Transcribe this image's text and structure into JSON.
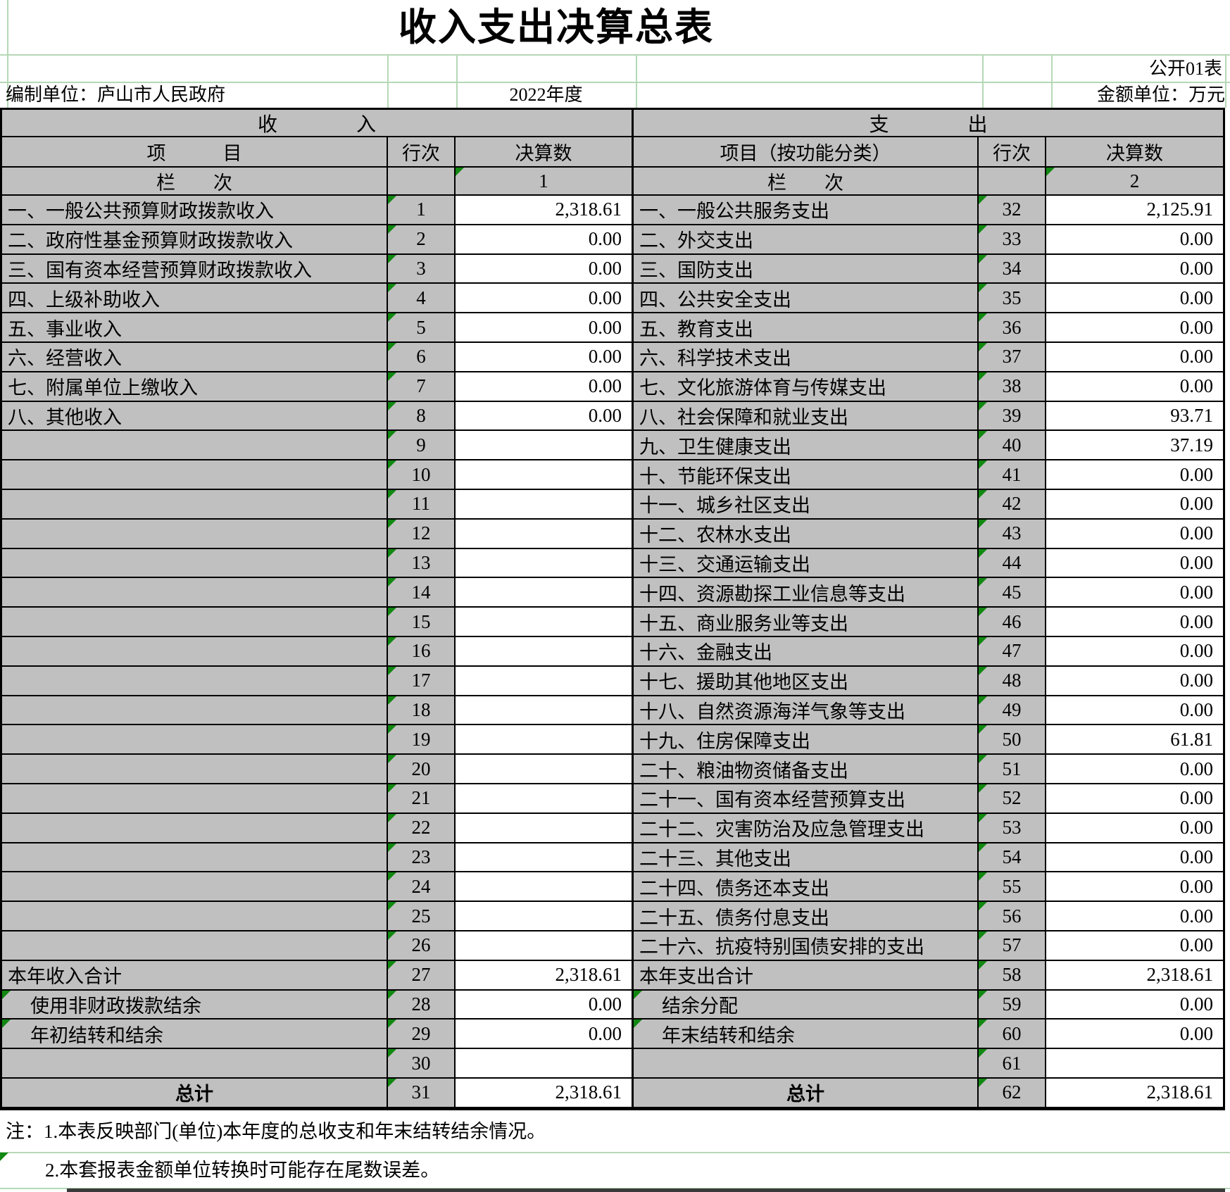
{
  "title": "收入支出决算总表",
  "meta": {
    "table_code": "公开01表",
    "prepared_by": "编制单位：庐山市人民政府",
    "fiscal_year": "2022年度",
    "unit_label": "金额单位：万元"
  },
  "income": {
    "section_title": "收　　　　入",
    "col_item": "项　　　目",
    "col_rowno": "行次",
    "col_amount": "决算数",
    "lanci_label": "栏　　次",
    "lanci_colno": "1",
    "rows": [
      {
        "item": "一、一般公共预算财政拨款收入",
        "no": "1",
        "value": "2,318.61"
      },
      {
        "item": "二、政府性基金预算财政拨款收入",
        "no": "2",
        "value": "0.00"
      },
      {
        "item": "三、国有资本经营预算财政拨款收入",
        "no": "3",
        "value": "0.00"
      },
      {
        "item": "四、上级补助收入",
        "no": "4",
        "value": "0.00"
      },
      {
        "item": "五、事业收入",
        "no": "5",
        "value": "0.00"
      },
      {
        "item": "六、经营收入",
        "no": "6",
        "value": "0.00"
      },
      {
        "item": "七、附属单位上缴收入",
        "no": "7",
        "value": "0.00"
      },
      {
        "item": "八、其他收入",
        "no": "8",
        "value": "0.00"
      },
      {
        "item": "",
        "no": "9",
        "value": ""
      },
      {
        "item": "",
        "no": "10",
        "value": ""
      },
      {
        "item": "",
        "no": "11",
        "value": ""
      },
      {
        "item": "",
        "no": "12",
        "value": ""
      },
      {
        "item": "",
        "no": "13",
        "value": ""
      },
      {
        "item": "",
        "no": "14",
        "value": ""
      },
      {
        "item": "",
        "no": "15",
        "value": ""
      },
      {
        "item": "",
        "no": "16",
        "value": ""
      },
      {
        "item": "",
        "no": "17",
        "value": ""
      },
      {
        "item": "",
        "no": "18",
        "value": ""
      },
      {
        "item": "",
        "no": "19",
        "value": ""
      },
      {
        "item": "",
        "no": "20",
        "value": ""
      },
      {
        "item": "",
        "no": "21",
        "value": ""
      },
      {
        "item": "",
        "no": "22",
        "value": ""
      },
      {
        "item": "",
        "no": "23",
        "value": ""
      },
      {
        "item": "",
        "no": "24",
        "value": ""
      },
      {
        "item": "",
        "no": "25",
        "value": ""
      },
      {
        "item": "",
        "no": "26",
        "value": ""
      },
      {
        "item": "本年收入合计",
        "no": "27",
        "value": "2,318.61"
      },
      {
        "item": "使用非财政拨款结余",
        "no": "28",
        "value": "0.00",
        "ind": 1,
        "tri": 1
      },
      {
        "item": "年初结转和结余",
        "no": "29",
        "value": "0.00",
        "ind": 1,
        "tri": 1
      },
      {
        "item": "",
        "no": "30",
        "value": ""
      },
      {
        "item": "总计",
        "no": "31",
        "value": "2,318.61",
        "tot": 1
      }
    ]
  },
  "expenditure": {
    "section_title": "支　　　　出",
    "col_item": "项目（按功能分类）",
    "col_rowno": "行次",
    "col_amount": "决算数",
    "lanci_label": "栏　　次",
    "lanci_colno": "2",
    "rows": [
      {
        "item": "一、一般公共服务支出",
        "no": "32",
        "value": "2,125.91"
      },
      {
        "item": "二、外交支出",
        "no": "33",
        "value": "0.00"
      },
      {
        "item": "三、国防支出",
        "no": "34",
        "value": "0.00"
      },
      {
        "item": "四、公共安全支出",
        "no": "35",
        "value": "0.00"
      },
      {
        "item": "五、教育支出",
        "no": "36",
        "value": "0.00"
      },
      {
        "item": "六、科学技术支出",
        "no": "37",
        "value": "0.00"
      },
      {
        "item": "七、文化旅游体育与传媒支出",
        "no": "38",
        "value": "0.00"
      },
      {
        "item": "八、社会保障和就业支出",
        "no": "39",
        "value": "93.71"
      },
      {
        "item": "九、卫生健康支出",
        "no": "40",
        "value": "37.19"
      },
      {
        "item": "十、节能环保支出",
        "no": "41",
        "value": "0.00"
      },
      {
        "item": "十一、城乡社区支出",
        "no": "42",
        "value": "0.00"
      },
      {
        "item": "十二、农林水支出",
        "no": "43",
        "value": "0.00"
      },
      {
        "item": "十三、交通运输支出",
        "no": "44",
        "value": "0.00"
      },
      {
        "item": "十四、资源勘探工业信息等支出",
        "no": "45",
        "value": "0.00"
      },
      {
        "item": "十五、商业服务业等支出",
        "no": "46",
        "value": "0.00"
      },
      {
        "item": "十六、金融支出",
        "no": "47",
        "value": "0.00"
      },
      {
        "item": "十七、援助其他地区支出",
        "no": "48",
        "value": "0.00"
      },
      {
        "item": "十八、自然资源海洋气象等支出",
        "no": "49",
        "value": "0.00"
      },
      {
        "item": "十九、住房保障支出",
        "no": "50",
        "value": "61.81"
      },
      {
        "item": "二十、粮油物资储备支出",
        "no": "51",
        "value": "0.00"
      },
      {
        "item": "二十一、国有资本经营预算支出",
        "no": "52",
        "value": "0.00"
      },
      {
        "item": "二十二、灾害防治及应急管理支出",
        "no": "53",
        "value": "0.00"
      },
      {
        "item": "二十三、其他支出",
        "no": "54",
        "value": "0.00"
      },
      {
        "item": "二十四、债务还本支出",
        "no": "55",
        "value": "0.00"
      },
      {
        "item": "二十五、债务付息支出",
        "no": "56",
        "value": "0.00"
      },
      {
        "item": "二十六、抗疫特别国债安排的支出",
        "no": "57",
        "value": "0.00"
      },
      {
        "item": "本年支出合计",
        "no": "58",
        "value": "2,318.61"
      },
      {
        "item": "结余分配",
        "no": "59",
        "value": "0.00",
        "ind": 1,
        "tri": 1
      },
      {
        "item": "年末结转和结余",
        "no": "60",
        "value": "0.00",
        "ind": 1,
        "tri": 1
      },
      {
        "item": "",
        "no": "61",
        "value": ""
      },
      {
        "item": "总计",
        "no": "62",
        "value": "2,318.61",
        "tot": 1
      }
    ]
  },
  "notes": {
    "line1": "注：1.本表反映部门(单位)本年度的总收支和年末结转结余情况。",
    "line2": "2.本套报表金额单位转换时可能存在尾数误差。"
  },
  "colors": {
    "cell_gray": "#c0c0c0",
    "gridline_green": "#b5d8b5",
    "error_triangle_green": "#118811",
    "border_black": "#000000"
  }
}
